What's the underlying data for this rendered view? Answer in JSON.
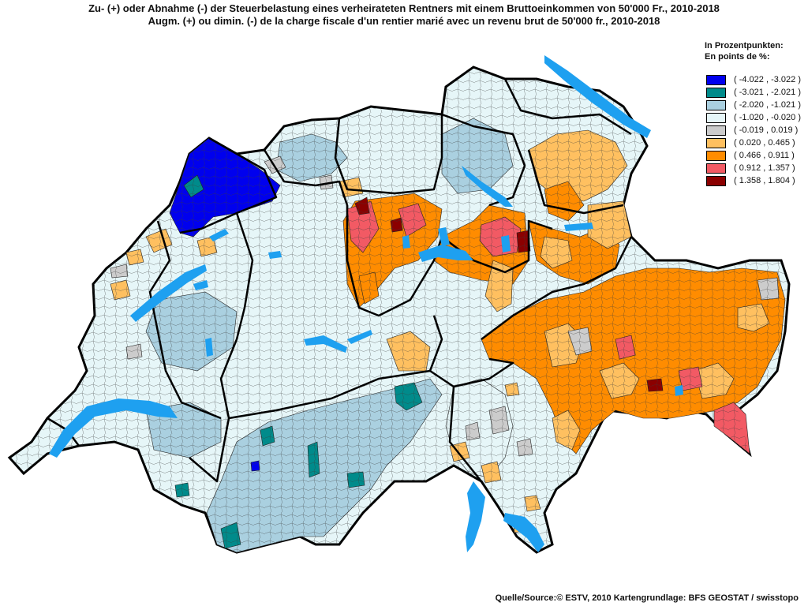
{
  "title_de": "Zu- (+) oder Abnahme (-) der Steuerbelastung eines verheirateten Rentners mit einem Bruttoeinkommen von 50'000 Fr., 2010-2018",
  "title_fr": "Augm. (+) ou dimin. (-) de la charge fiscale d'un rentier marié avec un revenu brut de 50'000 fr., 2010-2018",
  "legend": {
    "heading_de": "In Prozentpunkten:",
    "heading_fr": "En points de %:",
    "classes": [
      {
        "label": "( -4.022 , -3.022 )",
        "color": "#0000ee"
      },
      {
        "label": "( -3.021 , -2.021 )",
        "color": "#008b8b"
      },
      {
        "label": "( -2.020 , -1.021 )",
        "color": "#aad0e0"
      },
      {
        "label": "( -1.020 , -0.020 )",
        "color": "#e6f6f8"
      },
      {
        "label": "( -0.019 , 0.019 )",
        "color": "#cccccc"
      },
      {
        "label": "( 0.020 , 0.465 )",
        "color": "#ffc060"
      },
      {
        "label": "( 0.466 , 0.911 )",
        "color": "#ff8c00"
      },
      {
        "label": "( 0.912 , 1.357 )",
        "color": "#f25a64"
      },
      {
        "label": "( 1.358 , 1.804 )",
        "color": "#8b0000"
      }
    ]
  },
  "lake_color": "#1ea0f0",
  "source": "Quelle/Source:© ESTV, 2010 Kartengrundlage: BFS GEOSTAT / swisstopo"
}
